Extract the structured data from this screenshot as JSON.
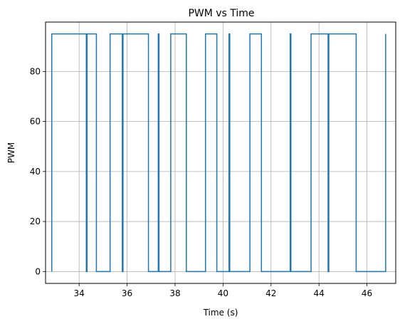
{
  "chart_data": {
    "type": "line",
    "title": "PWM vs Time",
    "xlabel": "Time (s)",
    "ylabel": "PWM",
    "xlim": [
      32.6,
      47.2
    ],
    "ylim": [
      -4.75,
      99.75
    ],
    "xticks": [
      34,
      36,
      38,
      40,
      42,
      44,
      46
    ],
    "yticks": [
      0,
      20,
      40,
      60,
      80
    ],
    "grid": true,
    "series": [
      {
        "color": "#1f77b4",
        "x": [
          32.86,
          32.86,
          34.3,
          34.3,
          34.33,
          34.33,
          34.72,
          34.72,
          35.29,
          35.29,
          35.8,
          35.8,
          35.83,
          35.83,
          36.89,
          36.89,
          37.3,
          37.3,
          37.33,
          37.33,
          37.82,
          37.82,
          38.47,
          38.47,
          39.27,
          39.27,
          39.74,
          39.74,
          40.25,
          40.25,
          40.28,
          40.28,
          41.12,
          41.12,
          41.6,
          41.6,
          42.8,
          42.8,
          42.83,
          42.83,
          43.67,
          43.67,
          44.38,
          44.38,
          44.41,
          44.41,
          45.55,
          45.55,
          46.78,
          46.78
        ],
        "y": [
          0,
          95,
          95,
          0,
          0,
          95,
          95,
          0,
          0,
          95,
          95,
          0,
          0,
          95,
          95,
          0,
          0,
          95,
          95,
          0,
          0,
          95,
          95,
          0,
          0,
          95,
          95,
          0,
          0,
          95,
          95,
          0,
          0,
          95,
          95,
          0,
          0,
          95,
          95,
          0,
          0,
          95,
          95,
          0,
          0,
          95,
          95,
          0,
          0,
          95
        ]
      }
    ]
  }
}
